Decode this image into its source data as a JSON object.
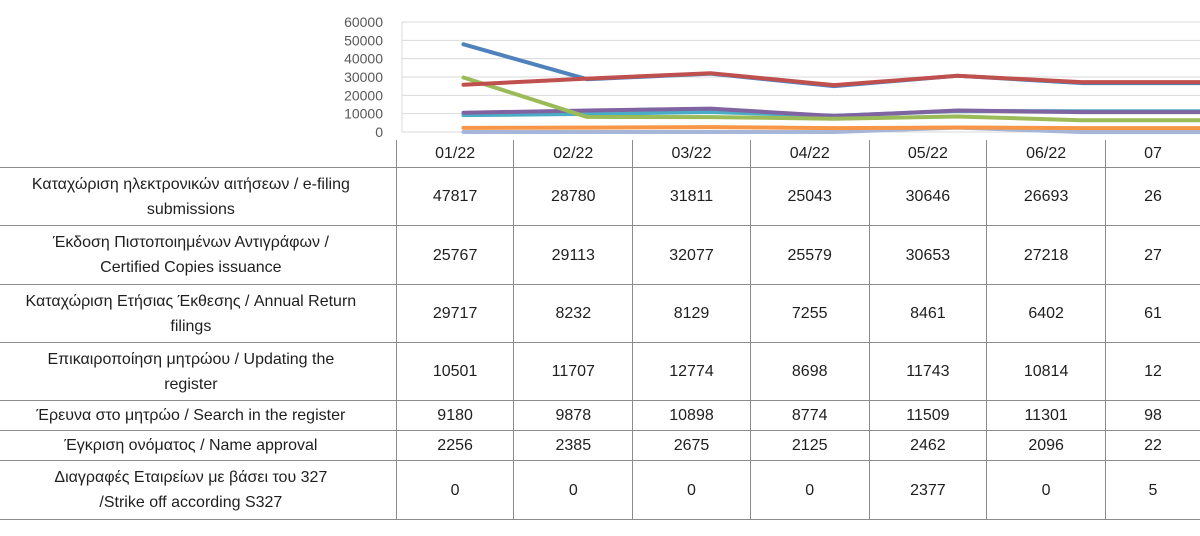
{
  "chart_data": {
    "type": "line",
    "categories": [
      "01/22",
      "02/22",
      "03/22",
      "04/22",
      "05/22",
      "06/22",
      "07"
    ],
    "y_ticks": [
      "60000",
      "50000",
      "40000",
      "30000",
      "20000",
      "10000",
      "0"
    ],
    "ylim": [
      0,
      60000
    ],
    "grid": true,
    "series": [
      {
        "name": "Καταχώριση ηλεκτρονικών αιτήσεων / e-filing submissions",
        "values": [
          47817,
          28780,
          31811,
          25043,
          30646,
          26693,
          null
        ],
        "values_text": [
          "47817",
          "28780",
          "31811",
          "25043",
          "30646",
          "26693",
          "26"
        ],
        "color": "#4f81bd"
      },
      {
        "name": "Έκδοση Πιστοποιημένων Αντιγράφων / Certified Copies issuance",
        "values": [
          25767,
          29113,
          32077,
          25579,
          30653,
          27218,
          null
        ],
        "values_text": [
          "25767",
          "29113",
          "32077",
          "25579",
          "30653",
          "27218",
          "27"
        ],
        "color": "#c0504d"
      },
      {
        "name": "Καταχώριση Ετήσιας Έκθεσης / Annual Return filings",
        "values": [
          29717,
          8232,
          8129,
          7255,
          8461,
          6402,
          null
        ],
        "values_text": [
          "29717",
          "8232",
          "8129",
          "7255",
          "8461",
          "6402",
          "61"
        ],
        "color": "#9bbb59"
      },
      {
        "name": "Επικαιροποίηση μητρώου / Updating the register",
        "values": [
          10501,
          11707,
          12774,
          8698,
          11743,
          10814,
          null
        ],
        "values_text": [
          "10501",
          "11707",
          "12774",
          "8698",
          "11743",
          "10814",
          "12"
        ],
        "color": "#8064a2"
      },
      {
        "name": "Έρευνα στο μητρώο / Search in the register",
        "values": [
          9180,
          9878,
          10898,
          8774,
          11509,
          11301,
          null
        ],
        "values_text": [
          "9180",
          "9878",
          "10898",
          "8774",
          "11509",
          "11301",
          "98"
        ],
        "color": "#4bacc6"
      },
      {
        "name": "Έγκριση ονόματος / Name approval",
        "values": [
          2256,
          2385,
          2675,
          2125,
          2462,
          2096,
          null
        ],
        "values_text": [
          "2256",
          "2385",
          "2675",
          "2125",
          "2462",
          "2096",
          "22"
        ],
        "color": "#f79646"
      },
      {
        "name": "Διαγραφές Εταιρείων με βάσει του 327 /Strike off according S327",
        "values": [
          0,
          0,
          0,
          0,
          2377,
          0,
          null
        ],
        "values_text": [
          "0",
          "0",
          "0",
          "0",
          "2377",
          "0",
          "5"
        ],
        "color": "#a5b6d9"
      }
    ]
  },
  "row_labels": [
    [
      "Καταχώριση ηλεκτρονικών αιτήσεων / e-filing",
      "submissions"
    ],
    [
      "Έκδοση Πιστοποιημένων Αντιγράφων /",
      "Certified Copies issuance"
    ],
    [
      "Καταχώριση Ετήσιας Έκθεσης / Annual Return",
      "filings"
    ],
    [
      "Επικαιροποίηση μητρώου / Updating the",
      "register"
    ],
    [
      "Έρευνα στο μητρώο / Search in the register"
    ],
    [
      "Έγκριση ονόματος / Name approval"
    ],
    [
      "Διαγραφές Εταιρείων με βάσει του 327",
      "/Strike off according S327"
    ]
  ]
}
